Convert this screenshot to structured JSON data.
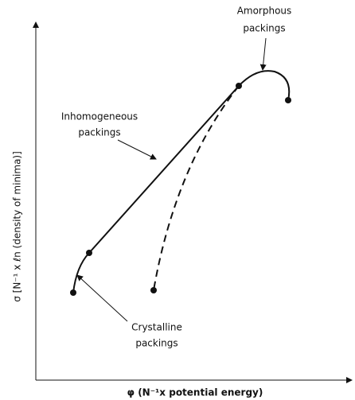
{
  "axes": {
    "x_label": "φ (N⁻¹x potential energy)",
    "y_label": "σ [N⁻¹ x ℓn (density of minima)]"
  },
  "annotations": [
    {
      "lines": [
        "Amorphous",
        "packings"
      ]
    },
    {
      "lines": [
        "Inhomogeneous",
        "packings"
      ]
    },
    {
      "lines": [
        "Crystalline",
        "packings"
      ]
    }
  ]
}
